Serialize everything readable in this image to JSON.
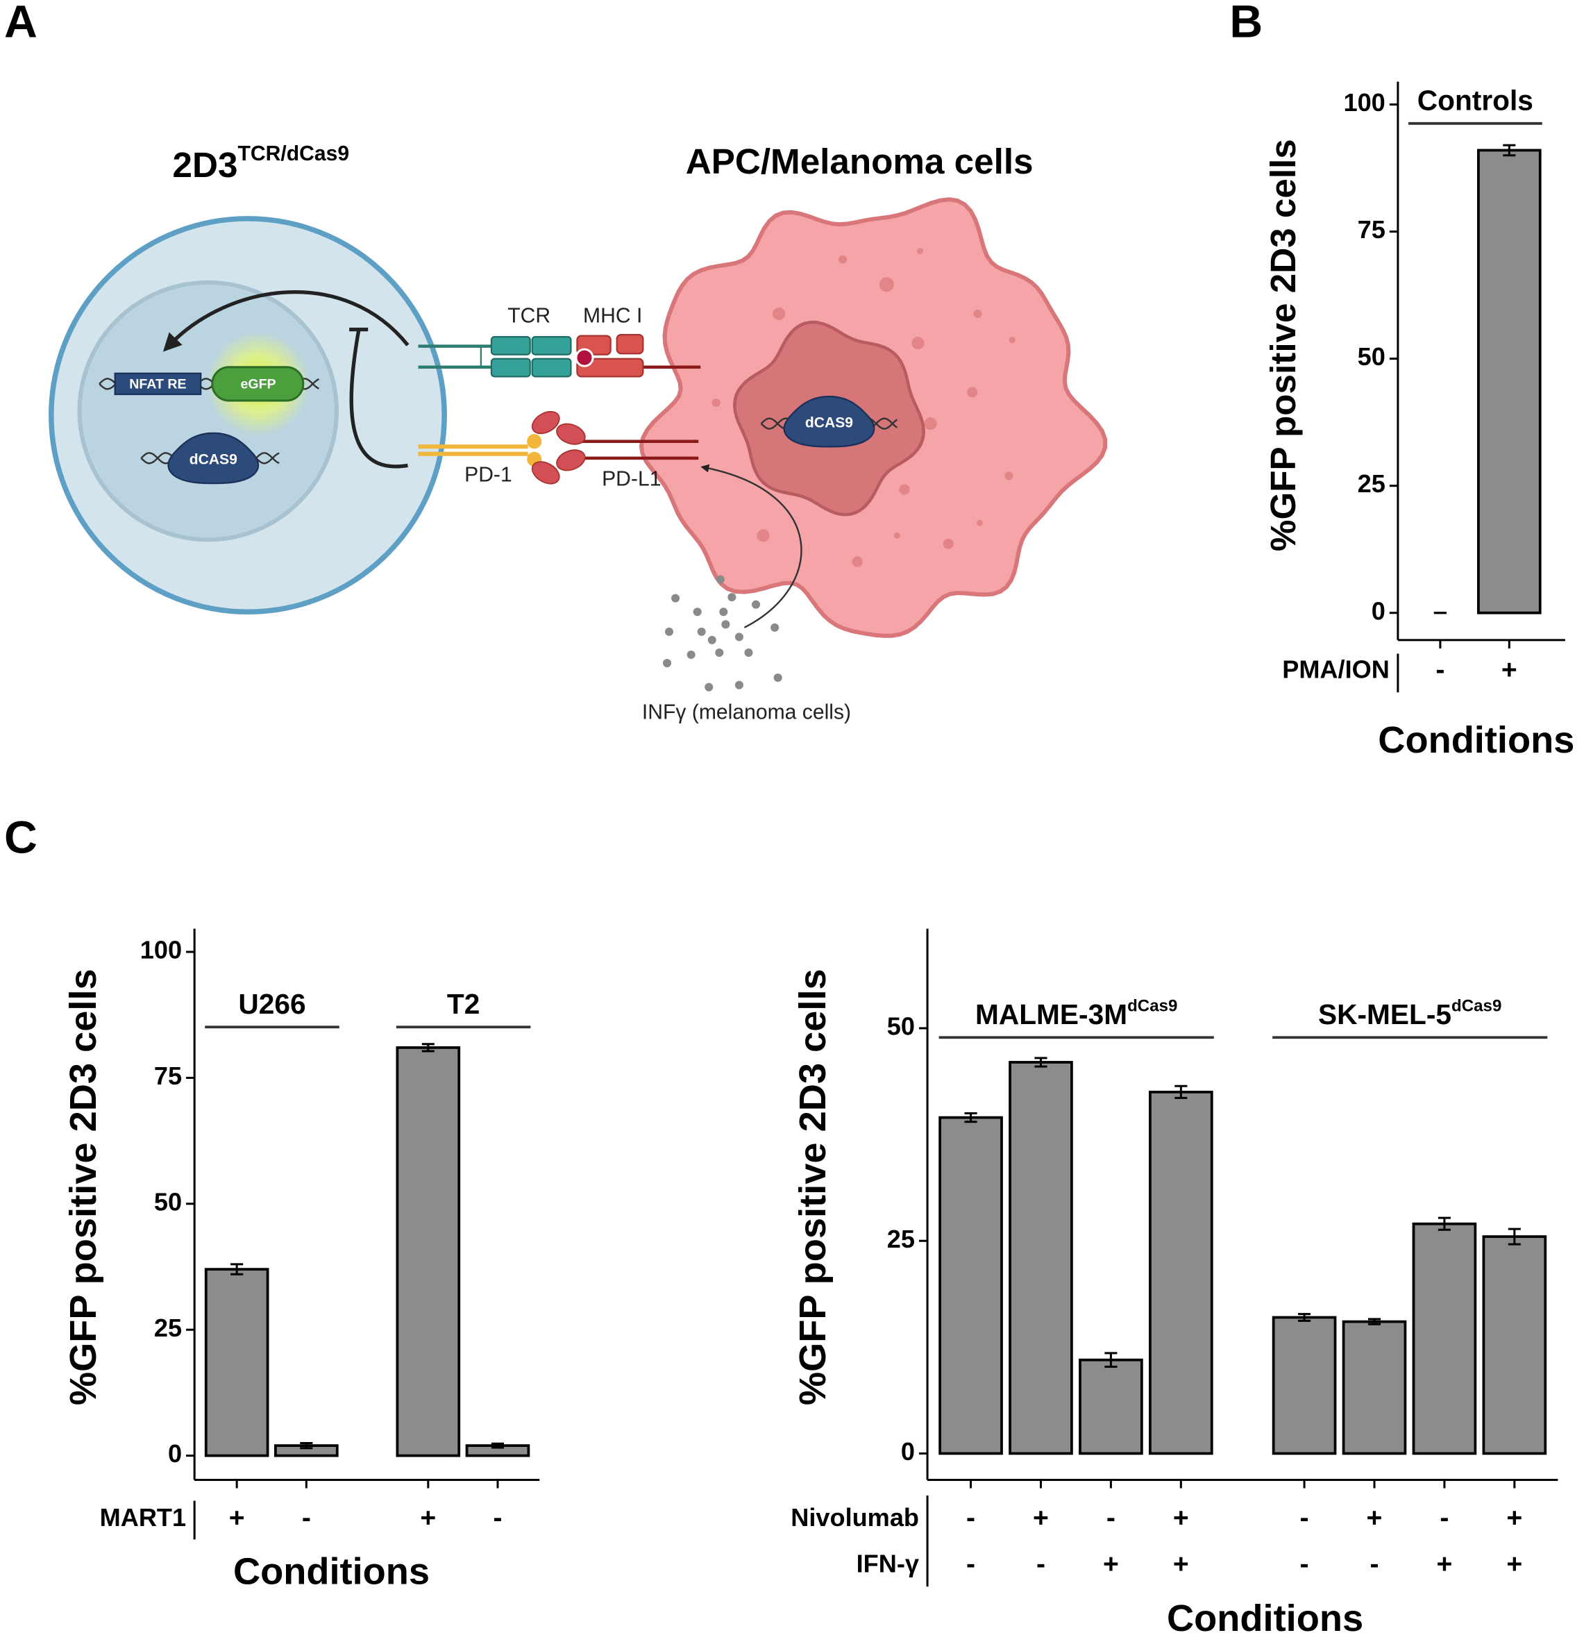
{
  "panels": [
    "A",
    "B",
    "C"
  ],
  "diagram": {
    "t_cell": {
      "label": "2D3",
      "label_sup": "TCR/dCas9"
    },
    "apc_title": "APC/Melanoma cells",
    "nfat": "NFAT RE",
    "egfp": "eGFP",
    "dcas9_t": "dCAS9",
    "dcas9_apc": "dCAS9",
    "tcr": "TCR",
    "mhc": "MHC I",
    "pd1": "PD-1",
    "pdl1": "PD-L1",
    "ifn": "INFγ (melanoma cells)"
  },
  "chart_data": [
    {
      "type": "bar",
      "ylabel": "%GFP positive 2D3 cells",
      "xlabel": "Conditions",
      "ylim": [
        -5.35,
        104.5
      ],
      "yticks": [
        0,
        25,
        50,
        75,
        100
      ],
      "color": "#8c8c8c",
      "groups": [
        {
          "name": "Controls",
          "values": [
            0,
            91
          ],
          "errors": [
            0,
            1
          ]
        }
      ],
      "conditions": [
        {
          "name": "PMA/ION",
          "labels": [
            "-",
            "+"
          ]
        }
      ]
    },
    {
      "type": "bar",
      "ylabel": "%GFP positive 2D3 cells",
      "xlabel": "Conditions",
      "ylim": [
        -4.8,
        104.6
      ],
      "yticks": [
        0,
        25,
        50,
        75,
        100
      ],
      "color": "#8c8c8c",
      "groups": [
        {
          "name": "U266",
          "values": [
            37,
            2
          ],
          "errors": [
            1,
            0.5
          ]
        },
        {
          "name": "T2",
          "values": [
            81,
            2
          ],
          "errors": [
            0.7,
            0.4
          ]
        }
      ],
      "conditions": [
        {
          "name": "MART1",
          "labels": [
            "+",
            "-",
            "+",
            "-"
          ]
        }
      ]
    },
    {
      "type": "bar",
      "ylabel": "%GFP positive 2D3 cells",
      "xlabel": "Conditions",
      "ylim": [
        -3.1,
        61.7
      ],
      "yticks": [
        0,
        25,
        50
      ],
      "color": "#8c8c8c",
      "groups": [
        {
          "name": "MALME-3M",
          "name_sup": "dCas9",
          "values": [
            39.5,
            46,
            11,
            42.5
          ],
          "errors": [
            0.5,
            0.5,
            0.8,
            0.7
          ]
        },
        {
          "name": "SK-MEL-5",
          "name_sup": "dCas9",
          "values": [
            16,
            15.5,
            27,
            25.5
          ],
          "errors": [
            0.4,
            0.3,
            0.7,
            0.9
          ]
        }
      ],
      "conditions": [
        {
          "name": "Nivolumab",
          "labels": [
            "-",
            "+",
            "-",
            "+",
            "-",
            "+",
            "-",
            "+"
          ]
        },
        {
          "name": "IFN-γ",
          "labels": [
            "-",
            "-",
            "+",
            "+",
            "-",
            "-",
            "+",
            "+"
          ]
        }
      ]
    }
  ]
}
